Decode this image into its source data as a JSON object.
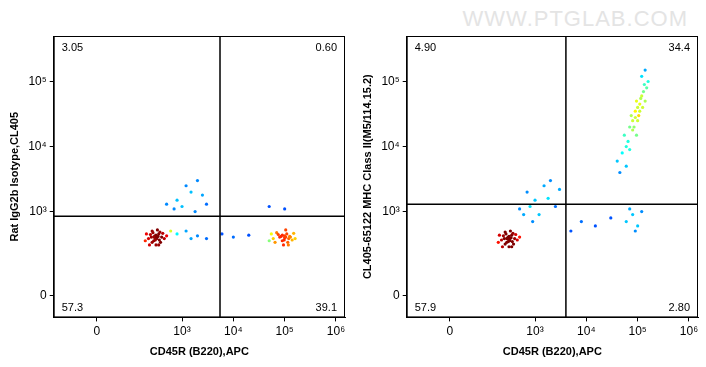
{
  "watermark": "WWW.PTGLAB.COM",
  "chart_data": [
    {
      "type": "scatter",
      "x_label": "CD45R (B220),APC",
      "y_label": "Rat IgG2b Isotype,CL405",
      "xlim": [
        -150,
        1500000
      ],
      "ylim": [
        -90,
        500000
      ],
      "xticks": [
        0,
        {
          "value": 1000,
          "label": "10³"
        },
        {
          "value": 10000,
          "label": "10⁴"
        },
        {
          "value": 100000,
          "label": "10⁵"
        },
        {
          "value": 1000000,
          "label": "10⁶"
        }
      ],
      "yticks": [
        0,
        {
          "value": 1000,
          "label": "10³"
        },
        {
          "value": 10000,
          "label": "10⁴"
        },
        {
          "value": 100000,
          "label": "10⁵"
        }
      ],
      "grid": false,
      "quadrant_x": 5500,
      "quadrant_y": 850,
      "quadrant_labels": {
        "top_left": 3.05,
        "top_right": {
          "value": 0.6,
          "label": "0.60"
        },
        "bottom_left": 57.3,
        "bottom_right": 39.1
      },
      "points": [
        [
          250,
          400
        ],
        [
          300,
          420
        ],
        [
          320,
          380
        ],
        [
          280,
          350
        ],
        [
          350,
          450
        ],
        [
          270,
          470
        ],
        [
          310,
          300
        ],
        [
          400,
          400
        ],
        [
          220,
          380
        ],
        [
          330,
          520
        ],
        [
          290,
          410
        ],
        [
          360,
          360
        ],
        [
          240,
          440
        ],
        [
          380,
          330
        ],
        [
          300,
          390
        ],
        [
          260,
          330
        ],
        [
          340,
          410
        ],
        [
          200,
          450
        ],
        [
          420,
          460
        ],
        [
          310,
          430
        ],
        [
          280,
          400
        ],
        [
          450,
          380
        ],
        [
          190,
          350
        ],
        [
          350,
          300
        ],
        [
          300,
          360
        ],
        [
          500,
          420
        ],
        [
          260,
          500
        ],
        [
          230,
          300
        ],
        [
          370,
          480
        ],
        [
          320,
          400
        ],
        [
          80000,
          400
        ],
        [
          100000,
          420
        ],
        [
          120000,
          380
        ],
        [
          90000,
          350
        ],
        [
          110000,
          450
        ],
        [
          70000,
          470
        ],
        [
          95000,
          300
        ],
        [
          130000,
          400
        ],
        [
          60000,
          380
        ],
        [
          105000,
          520
        ],
        [
          85000,
          410
        ],
        [
          140000,
          360
        ],
        [
          75000,
          440
        ],
        [
          115000,
          330
        ],
        [
          100000,
          390
        ],
        [
          65000,
          330
        ],
        [
          125000,
          410
        ],
        [
          55000,
          450
        ],
        [
          150000,
          460
        ],
        [
          90000,
          430
        ],
        [
          105000,
          400
        ],
        [
          160000,
          380
        ],
        [
          50000,
          350
        ],
        [
          118000,
          300
        ],
        [
          98000,
          360
        ],
        [
          800,
          450
        ],
        [
          1200,
          500
        ],
        [
          2000,
          420
        ],
        [
          3000,
          380
        ],
        [
          6000,
          450
        ],
        [
          10000,
          400
        ],
        [
          20000,
          430
        ],
        [
          1500,
          380
        ],
        [
          600,
          500
        ],
        [
          1000,
          1200
        ],
        [
          1500,
          2000
        ],
        [
          2000,
          3000
        ],
        [
          800,
          1500
        ],
        [
          2500,
          1800
        ],
        [
          1200,
          2500
        ],
        [
          700,
          1100
        ],
        [
          3000,
          1300
        ],
        [
          1800,
          1000
        ],
        [
          500,
          1300
        ],
        [
          50000,
          1200
        ],
        [
          100000,
          1100
        ]
      ]
    },
    {
      "type": "scatter",
      "x_label": "CD45R (B220),APC",
      "y_label": "CL405-65122 MHC Class II(M5/114.15.2)",
      "xlim": [
        -150,
        1500000
      ],
      "ylim": [
        -90,
        500000
      ],
      "xticks": [
        0,
        {
          "value": 1000,
          "label": "10³"
        },
        {
          "value": 10000,
          "label": "10⁴"
        },
        {
          "value": 100000,
          "label": "10⁵"
        },
        {
          "value": 1000000,
          "label": "10⁶"
        }
      ],
      "yticks": [
        0,
        {
          "value": 1000,
          "label": "10³"
        },
        {
          "value": 10000,
          "label": "10⁴"
        },
        {
          "value": 100000,
          "label": "10⁵"
        }
      ],
      "grid": false,
      "quadrant_x": 4000,
      "quadrant_y": 1300,
      "quadrant_labels": {
        "top_left": {
          "value": 4.9,
          "label": "4.90"
        },
        "top_right": 34.4,
        "bottom_left": 57.9,
        "bottom_right": {
          "value": 2.8,
          "label": "2.80"
        }
      },
      "points": [
        [
          250,
          380
        ],
        [
          300,
          400
        ],
        [
          320,
          350
        ],
        [
          280,
          330
        ],
        [
          350,
          430
        ],
        [
          270,
          450
        ],
        [
          310,
          280
        ],
        [
          400,
          380
        ],
        [
          220,
          360
        ],
        [
          330,
          500
        ],
        [
          290,
          390
        ],
        [
          360,
          340
        ],
        [
          240,
          420
        ],
        [
          380,
          310
        ],
        [
          300,
          370
        ],
        [
          260,
          310
        ],
        [
          340,
          390
        ],
        [
          200,
          430
        ],
        [
          420,
          440
        ],
        [
          310,
          410
        ],
        [
          280,
          380
        ],
        [
          450,
          360
        ],
        [
          190,
          330
        ],
        [
          350,
          280
        ],
        [
          300,
          340
        ],
        [
          500,
          400
        ],
        [
          260,
          480
        ],
        [
          230,
          280
        ],
        [
          370,
          460
        ],
        [
          320,
          380
        ],
        [
          600,
          900
        ],
        [
          800,
          1200
        ],
        [
          1000,
          1500
        ],
        [
          500,
          1100
        ],
        [
          1500,
          2500
        ],
        [
          2000,
          3000
        ],
        [
          1200,
          900
        ],
        [
          900,
          700
        ],
        [
          1800,
          1600
        ],
        [
          700,
          2000
        ],
        [
          2500,
          1200
        ],
        [
          3000,
          2200
        ],
        [
          5000,
          500
        ],
        [
          8000,
          700
        ],
        [
          15000,
          600
        ],
        [
          30000,
          800
        ],
        [
          60000,
          700
        ],
        [
          80000,
          900
        ],
        [
          100000,
          600
        ],
        [
          120000,
          1000
        ],
        [
          90000,
          500
        ],
        [
          70000,
          1100
        ],
        [
          40000,
          6000
        ],
        [
          50000,
          8000
        ],
        [
          60000,
          10000
        ],
        [
          55000,
          15000
        ],
        [
          70000,
          20000
        ],
        [
          65000,
          12000
        ],
        [
          80000,
          25000
        ],
        [
          75000,
          30000
        ],
        [
          90000,
          35000
        ],
        [
          85000,
          20000
        ],
        [
          100000,
          40000
        ],
        [
          95000,
          50000
        ],
        [
          110000,
          45000
        ],
        [
          120000,
          60000
        ],
        [
          105000,
          30000
        ],
        [
          130000,
          70000
        ],
        [
          140000,
          50000
        ],
        [
          150000,
          80000
        ],
        [
          125000,
          40000
        ],
        [
          115000,
          55000
        ],
        [
          160000,
          100000
        ],
        [
          135000,
          90000
        ],
        [
          45000,
          4000
        ],
        [
          60000,
          5000
        ],
        [
          70000,
          9000
        ],
        [
          100000,
          25000
        ],
        [
          110000,
          35000
        ],
        [
          95000,
          15000
        ],
        [
          120000,
          120000
        ],
        [
          140000,
          150000
        ],
        [
          80000,
          18000
        ],
        [
          90000,
          28000
        ]
      ]
    }
  ]
}
